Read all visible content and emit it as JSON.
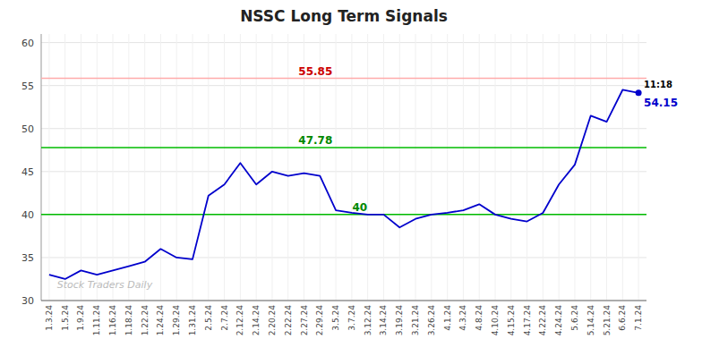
{
  "chart_data": {
    "type": "line",
    "title": "NSSC Long Term Signals",
    "categories": [
      "1.3.24",
      "1.5.24",
      "1.9.24",
      "1.11.24",
      "1.16.24",
      "1.18.24",
      "1.22.24",
      "1.24.24",
      "1.29.24",
      "1.31.24",
      "2.5.24",
      "2.7.24",
      "2.12.24",
      "2.14.24",
      "2.20.24",
      "2.22.24",
      "2.27.24",
      "2.29.24",
      "3.5.24",
      "3.7.24",
      "3.12.24",
      "3.14.24",
      "3.19.24",
      "3.21.24",
      "3.26.24",
      "4.1.24",
      "4.3.24",
      "4.8.24",
      "4.10.24",
      "4.15.24",
      "4.17.24",
      "4.22.24",
      "4.24.24",
      "5.6.24",
      "5.14.24",
      "5.21.24",
      "6.6.24",
      "7.1.24"
    ],
    "values": [
      33.0,
      32.5,
      33.5,
      33.0,
      33.5,
      34.0,
      34.5,
      36.0,
      35.0,
      34.8,
      42.2,
      43.5,
      46.0,
      43.5,
      45.0,
      44.5,
      44.8,
      44.5,
      40.5,
      40.2,
      40.0,
      40.0,
      38.5,
      39.5,
      40.0,
      40.2,
      40.5,
      41.2,
      40.0,
      39.5,
      39.2,
      40.2,
      43.5,
      45.8,
      51.5,
      50.8,
      54.5,
      54.15
    ],
    "color": "#0000cc",
    "ylim": [
      30,
      61
    ],
    "yticks": [
      30,
      35,
      40,
      45,
      50,
      55,
      60
    ],
    "grid": true,
    "reference_lines": [
      {
        "y": 55.85,
        "color": "#ffaaaa",
        "label": "55.85",
        "label_color": "#cc0000"
      },
      {
        "y": 47.78,
        "color": "#00bb00",
        "label": "47.78",
        "label_color": "#008800"
      },
      {
        "y": 40.0,
        "color": "#00bb00",
        "label": "40",
        "label_color": "#008800"
      }
    ],
    "end_point": {
      "time_label": "11:18",
      "value_label": "54.15"
    },
    "watermark": "Stock Traders Daily"
  }
}
